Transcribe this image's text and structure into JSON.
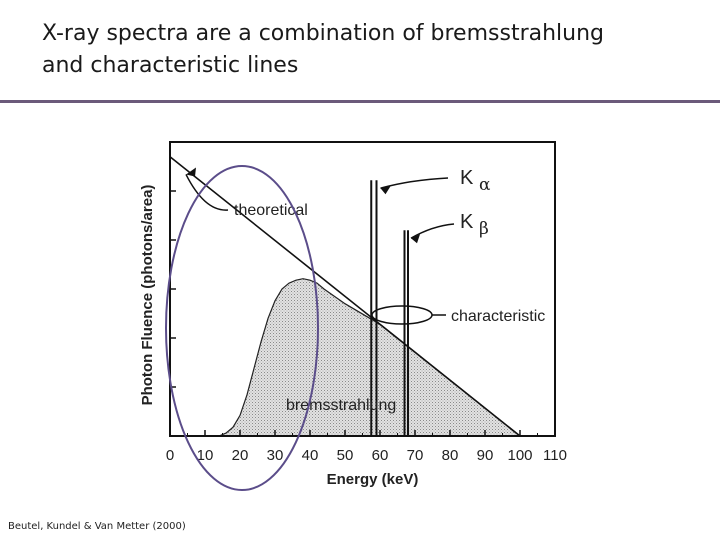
{
  "slide": {
    "title_line1": "X-ray spectra are a combination of bremsstrahlung",
    "title_line2": "and characteristic lines",
    "citation": "Beutel, Kundel & Van Metter (2000)",
    "accent_color": "#6b5a7a",
    "ellipse_color": "#5b4d8a"
  },
  "chart_data": {
    "type": "area",
    "xlabel": "Energy (keV)",
    "ylabel": "Photon Fluence (photons/area)",
    "xlim": [
      0,
      110
    ],
    "x_ticks": [
      "0",
      "10",
      "20",
      "30",
      "40",
      "50",
      "60",
      "70",
      "80",
      "90",
      "100",
      "110"
    ],
    "ylim": [
      0,
      1
    ],
    "grid": false,
    "series": [
      {
        "name": "theoretical",
        "x": [
          0,
          100
        ],
        "y": [
          0.95,
          0
        ]
      },
      {
        "name": "bremsstrahlung",
        "x": [
          0,
          14,
          16,
          18,
          20,
          22,
          24,
          26,
          28,
          30,
          32,
          34,
          36,
          38,
          40,
          42,
          44,
          50,
          60,
          70,
          80,
          90,
          100
        ],
        "y": [
          0,
          0,
          0.01,
          0.03,
          0.07,
          0.14,
          0.23,
          0.32,
          0.4,
          0.46,
          0.5,
          0.52,
          0.53,
          0.535,
          0.53,
          0.52,
          0.5,
          0.45,
          0.38,
          0.285,
          0.19,
          0.095,
          0
        ]
      },
      {
        "name": "characteristic",
        "lines": [
          {
            "label": "K",
            "greek": "α",
            "x": [
              57.5,
              59
            ],
            "y": 0.87
          },
          {
            "label": "K",
            "greek": "β",
            "x": [
              67,
              68
            ],
            "y": 0.7
          }
        ]
      }
    ],
    "annotations": {
      "theoretical": "theoretical",
      "characteristic": "characteristic",
      "bremsstrahlung": "bremsstrahlung",
      "k_alpha": "K",
      "k_alpha_greek": "α",
      "k_beta": "K",
      "k_beta_greek": "β"
    }
  }
}
